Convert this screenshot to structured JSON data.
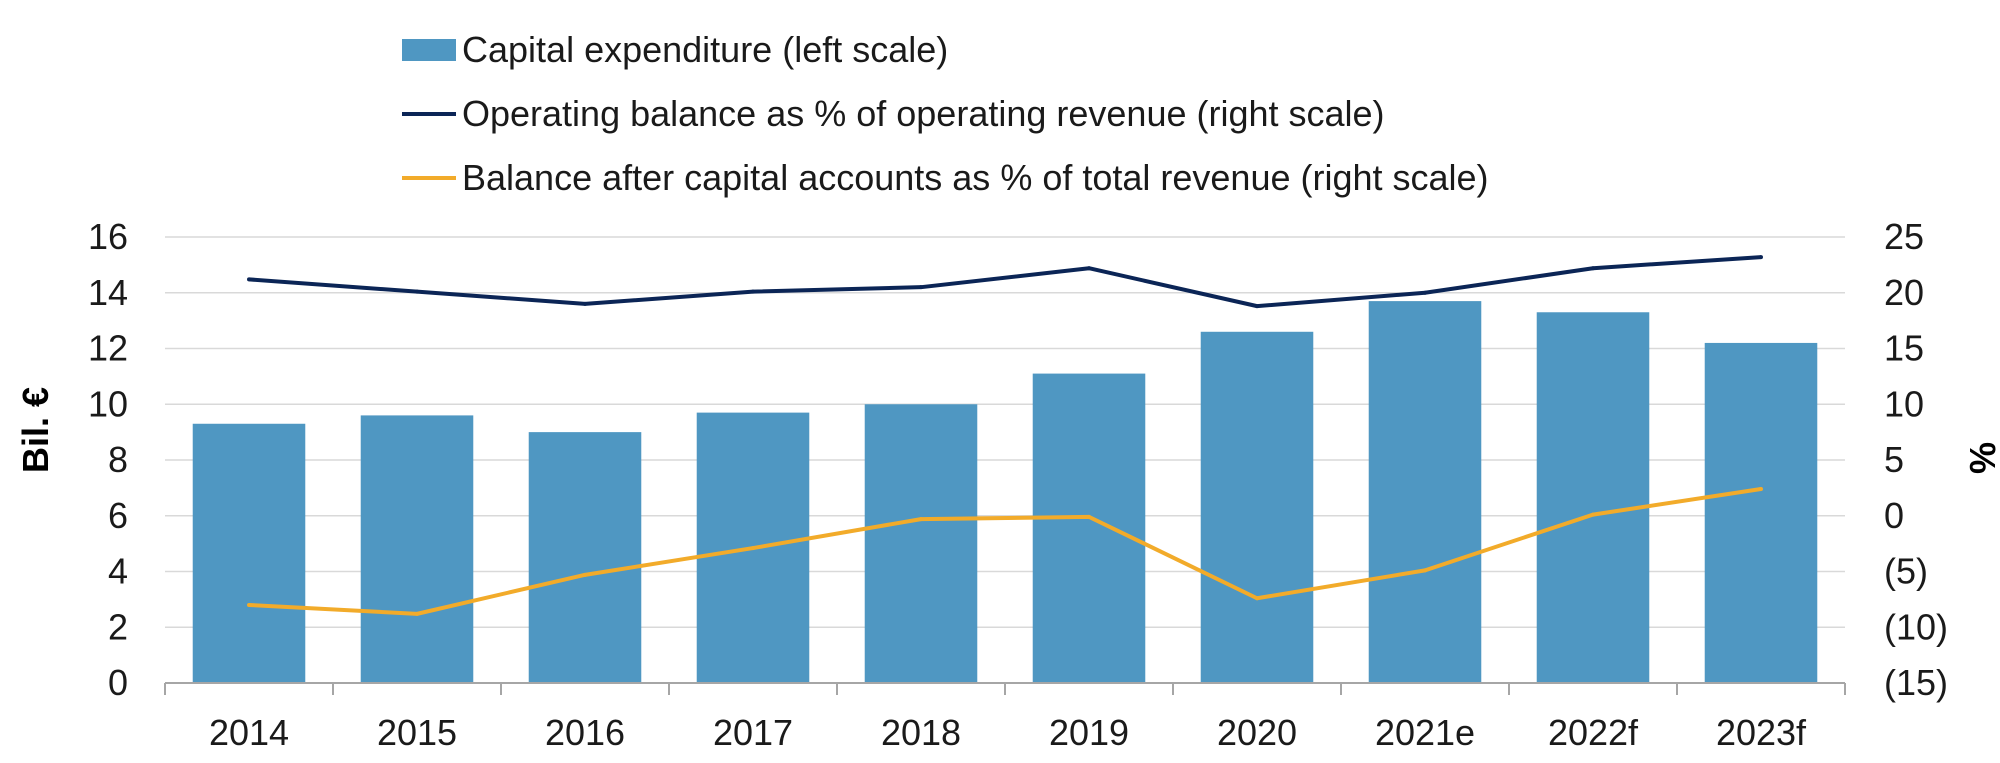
{
  "chart_data": {
    "type": "bar",
    "categories": [
      "2014",
      "2015",
      "2016",
      "2017",
      "2018",
      "2019",
      "2020",
      "2021e",
      "2022f",
      "2023f"
    ],
    "ylabel": "Bil. €",
    "y2label": "%",
    "ylim": [
      0,
      16
    ],
    "y2lim": [
      -15,
      25
    ],
    "yticks": [
      "0",
      "2",
      "4",
      "6",
      "8",
      "10",
      "12",
      "14",
      "16"
    ],
    "y2ticks": [
      "(15)",
      "(10)",
      "(5)",
      "0",
      "5",
      "10",
      "15",
      "20",
      "25"
    ],
    "grid": true,
    "legend_position": "top",
    "series": [
      {
        "name": "Capital expenditure (left scale)",
        "type": "bar",
        "axis": "left",
        "color": "#4f97c2",
        "values": [
          9.3,
          9.6,
          9.0,
          9.7,
          10.0,
          11.1,
          12.6,
          13.7,
          13.3,
          12.2
        ]
      },
      {
        "name": "Operating balance as % of operating revenue (right scale)",
        "type": "line",
        "axis": "right",
        "color": "#0b2556",
        "values": [
          21.2,
          20.1,
          19.0,
          20.1,
          20.5,
          22.2,
          18.8,
          20.0,
          22.2,
          23.2
        ]
      },
      {
        "name": "Balance after capital accounts as % of total revenue (right scale)",
        "type": "line",
        "axis": "right",
        "color": "#f2ab2a",
        "values": [
          -8.0,
          -8.8,
          -5.3,
          -2.9,
          -0.3,
          -0.1,
          -7.4,
          -4.9,
          0.1,
          2.4
        ]
      }
    ]
  }
}
